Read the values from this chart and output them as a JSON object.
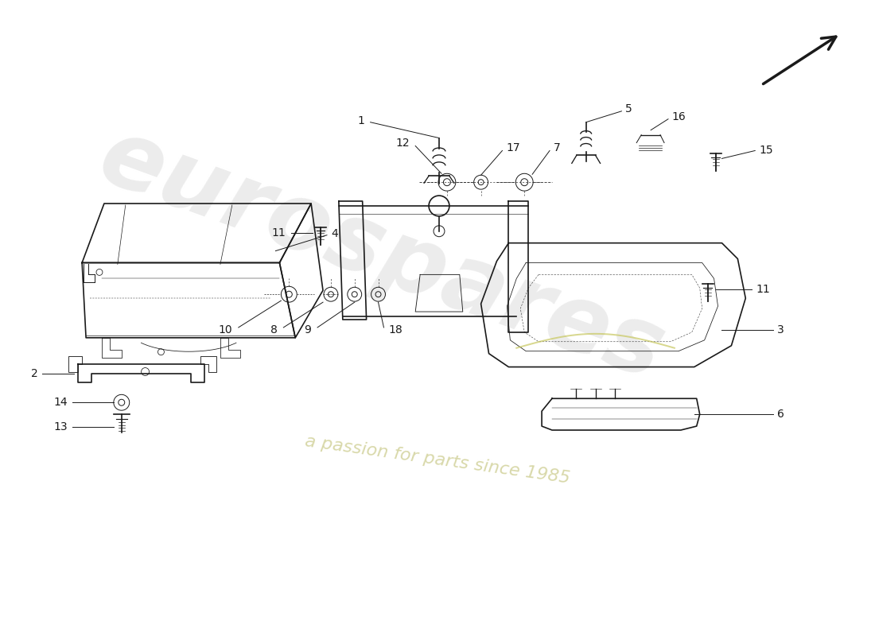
{
  "background_color": "#ffffff",
  "watermark_text1": "eurospares",
  "watermark_text2": "a passion for parts since 1985",
  "line_color": "#1a1a1a",
  "watermark_color": "#e0e0e0",
  "watermark_text_color": "#d4d4a0"
}
